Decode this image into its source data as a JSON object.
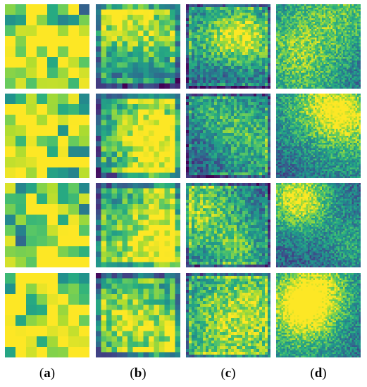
{
  "figure": {
    "columns": [
      {
        "id": "a",
        "grid": 8,
        "seedBase": 11,
        "bias": 0.35,
        "frame": false
      },
      {
        "id": "b",
        "grid": 16,
        "seedBase": 37,
        "bias": 0.25,
        "frame": true
      },
      {
        "id": "c",
        "grid": 30,
        "seedBase": 71,
        "bias": 0.2,
        "frame": true
      },
      {
        "id": "d",
        "grid": 48,
        "seedBase": 97,
        "bias": 0.3,
        "frame": false
      }
    ],
    "rows": 4,
    "captions": [
      "(a)",
      "(b)",
      "(c)",
      "(d)"
    ],
    "caption_letters": [
      "a",
      "b",
      "c",
      "d"
    ],
    "colormap": [
      "#440154",
      "#472d7b",
      "#3b528b",
      "#2c728e",
      "#21918c",
      "#28ae80",
      "#5ec962",
      "#addc30",
      "#fde725"
    ]
  }
}
